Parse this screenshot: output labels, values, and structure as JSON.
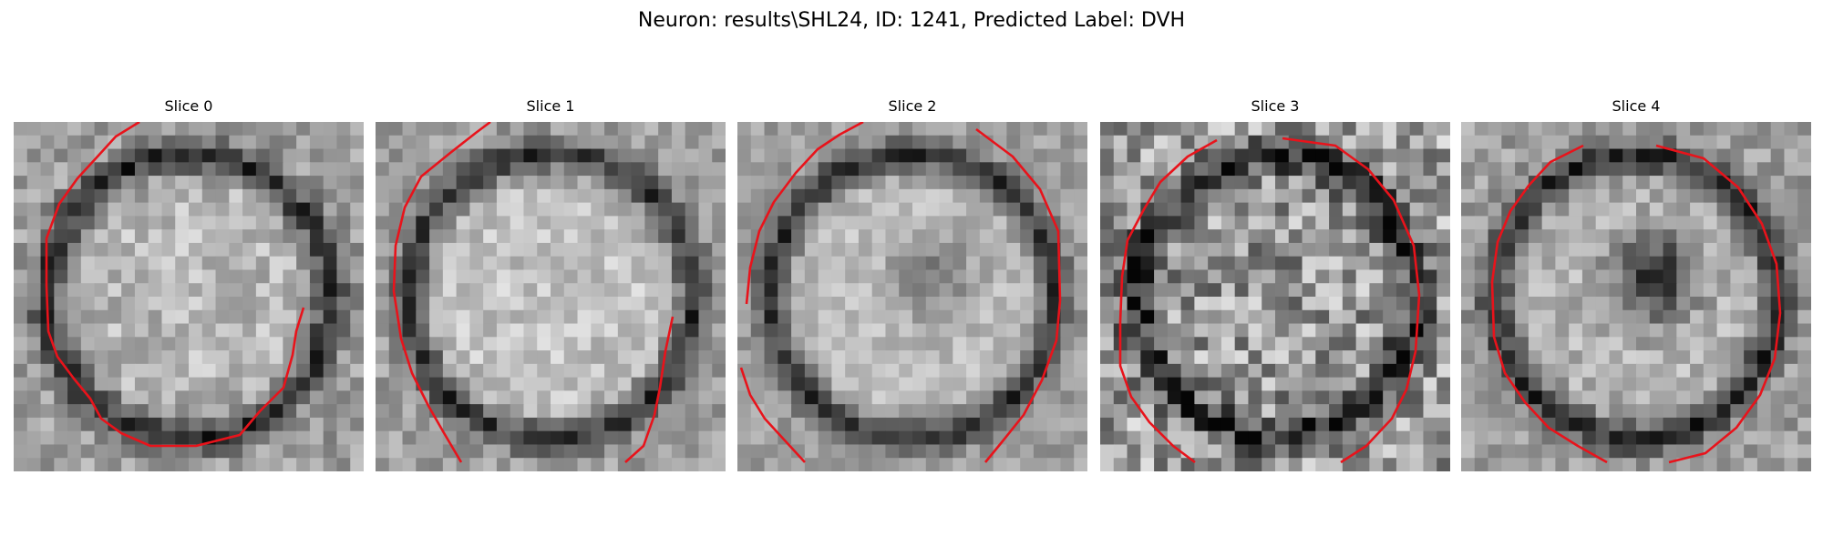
{
  "figure": {
    "title": "Neuron: results\\SHL24, ID: 1241, Predicted Label: DVH"
  },
  "panels": [
    {
      "title": "Slice 0",
      "image": "noisy-grayscale-neuron-slice",
      "contour_color": "#e8131b"
    },
    {
      "title": "Slice 1",
      "image": "noisy-grayscale-neuron-slice",
      "contour_color": "#e8131b"
    },
    {
      "title": "Slice 2",
      "image": "noisy-grayscale-neuron-slice",
      "contour_color": "#e8131b"
    },
    {
      "title": "Slice 3",
      "image": "noisy-grayscale-neuron-slice",
      "contour_color": "#e8131b"
    },
    {
      "title": "Slice 4",
      "image": "noisy-grayscale-neuron-slice",
      "contour_color": "#e8131b"
    }
  ]
}
